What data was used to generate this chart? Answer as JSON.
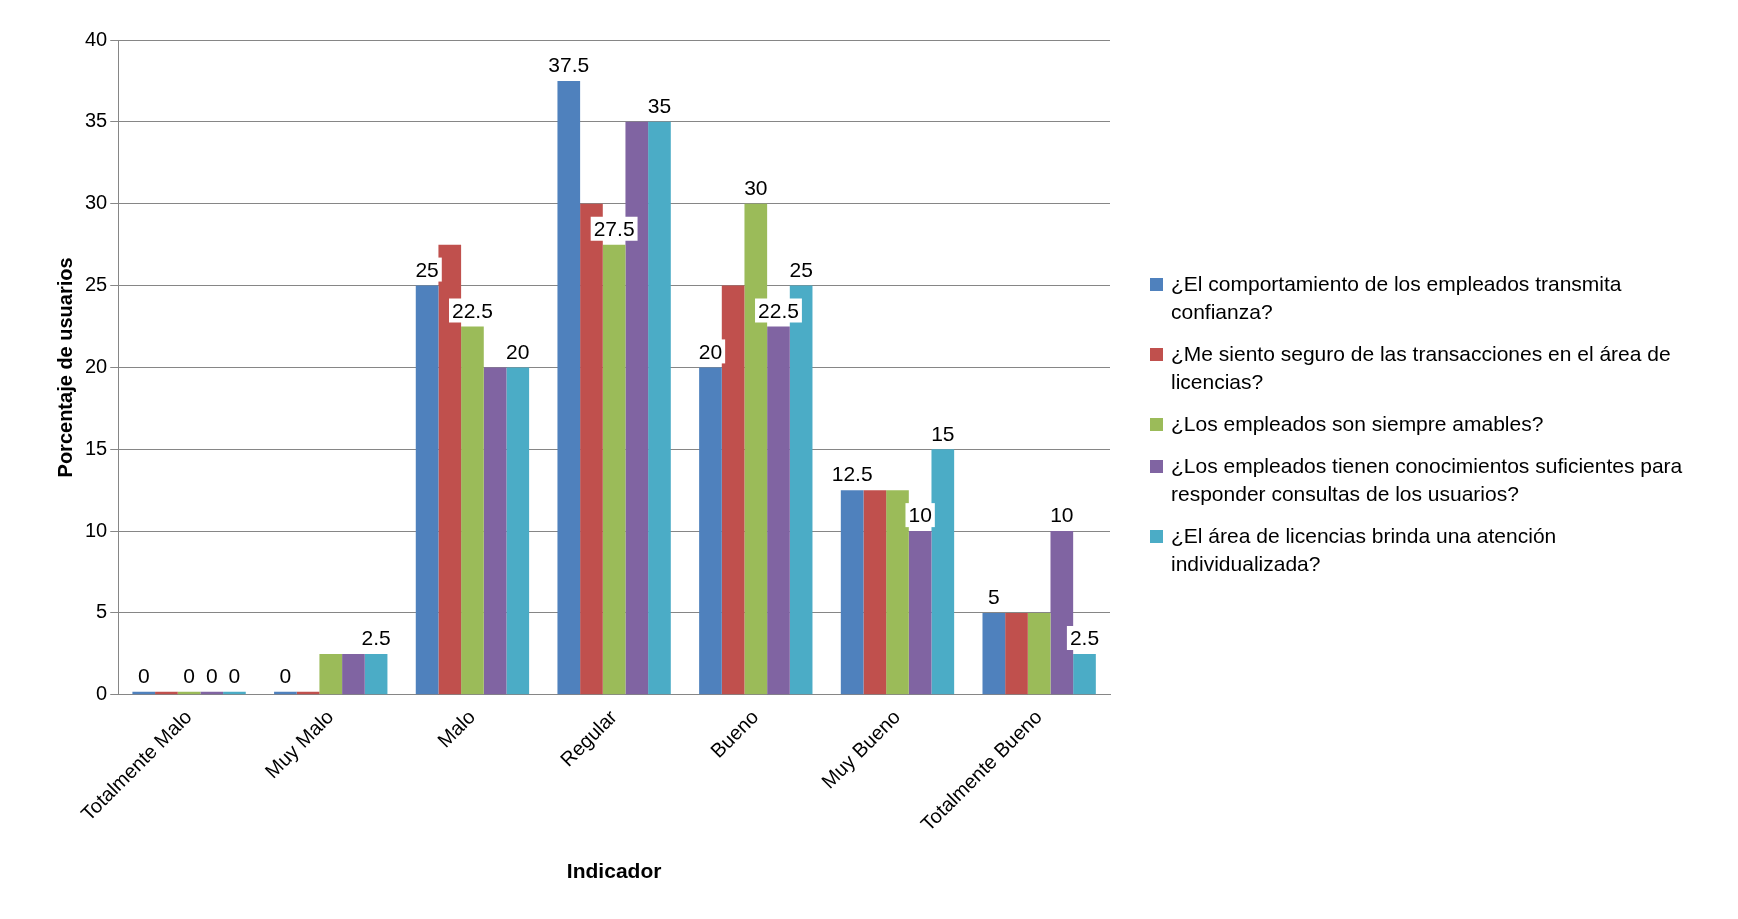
{
  "chart_data": {
    "type": "bar",
    "xlabel": "Indicador",
    "ylabel": "Porcentaje de usuarios",
    "categories": [
      "Totalmente Malo",
      "Muy Malo",
      "Malo",
      "Regular",
      "Bueno",
      "Muy Bueno",
      "Totalmente Bueno"
    ],
    "series": [
      {
        "name": "¿El comportamiento de los empleados transmita confianza?",
        "color": "#4f81bd",
        "values": [
          0,
          0,
          25,
          37.5,
          20,
          12.5,
          5
        ],
        "value_labels": [
          "0",
          "0",
          "25",
          "37.5",
          "20",
          "12.5",
          "5"
        ]
      },
      {
        "name": "¿Me siento seguro de las transacciones en el área de licencias?",
        "color": "#c0504d",
        "values": [
          0,
          0,
          27.5,
          30,
          25,
          12.5,
          5
        ],
        "value_labels": [
          null,
          null,
          null,
          null,
          null,
          null,
          null
        ]
      },
      {
        "name": "¿Los empleados son siempre amables?",
        "color": "#9bbb59",
        "values": [
          0,
          2.5,
          22.5,
          27.5,
          30,
          12.5,
          5
        ],
        "value_labels": [
          "0",
          null,
          "22.5",
          "27.5",
          "30",
          null,
          null
        ]
      },
      {
        "name": "¿Los empleados tienen conocimientos suficientes para responder consultas de los usuarios?",
        "color": "#8064a2",
        "values": [
          0,
          2.5,
          20,
          35,
          22.5,
          10,
          10
        ],
        "value_labels": [
          "0",
          null,
          null,
          null,
          "22.5",
          "10",
          "10"
        ]
      },
      {
        "name": "¿El área de licencias brinda una atención individualizada?",
        "color": "#4bacc6",
        "values": [
          0,
          2.5,
          20,
          35,
          25,
          15,
          2.5
        ],
        "value_labels": [
          "0",
          "2.5",
          "20",
          "35",
          "25",
          "15",
          "2.5"
        ]
      }
    ],
    "ylim": [
      0,
      40
    ],
    "yticks": [
      0,
      5,
      10,
      15,
      20,
      25,
      30,
      35,
      40
    ],
    "grid": "y",
    "legend": "right"
  }
}
